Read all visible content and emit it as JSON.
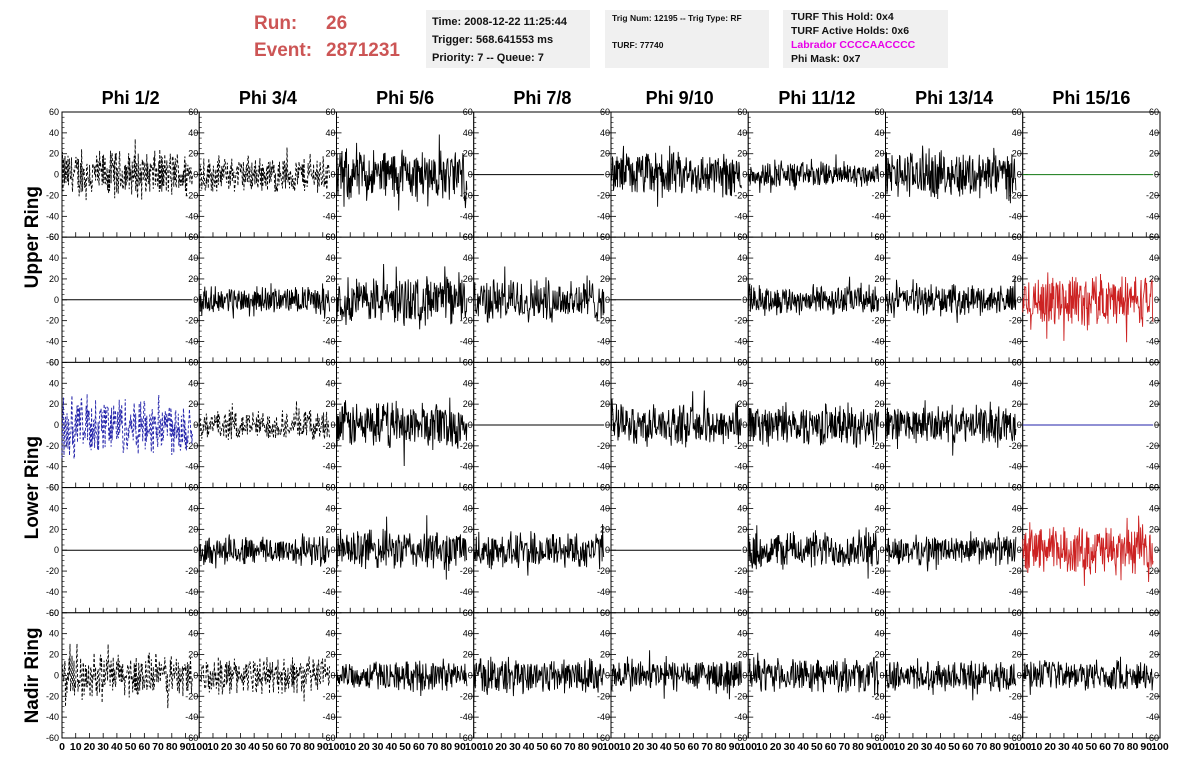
{
  "header": {
    "run_label": "Run:",
    "run_value": "26",
    "event_label": "Event:",
    "event_value": "2871231",
    "time_line": "Time: 2008-12-22 11:25:44",
    "trigger_line": "Trigger: 568.641553 ms",
    "priority_line": "Priority: 7 -- Queue: 7",
    "trig_line": "Trig Num: 12195 -- Trig Type: RF",
    "turf_line": "TURF: 77740",
    "hold_line": "TURF This Hold: 0x4",
    "active_holds_line": "TURF Active Holds: 0x6",
    "labrador_line": "Labrador CCCCAACCCC",
    "phi_mask_line": "Phi Mask: 0x7",
    "labrador_color": "#e800e8"
  },
  "chart_data": {
    "type": "line",
    "columns": [
      "Phi 1/2",
      "Phi 3/4",
      "Phi 5/6",
      "Phi 7/8",
      "Phi 9/10",
      "Phi 11/12",
      "Phi 13/14",
      "Phi 15/16"
    ],
    "rows": [
      "Upper Ring",
      "Lower Ring",
      "Nadir Ring"
    ],
    "sub_rows_per_ring": 2,
    "xlim": [
      0,
      100
    ],
    "ylim": [
      -60,
      60
    ],
    "x_ticks": [
      0,
      10,
      20,
      30,
      40,
      50,
      60,
      70,
      80,
      90,
      100
    ],
    "y_ticks": [
      -60,
      -40,
      -20,
      0,
      20,
      40,
      60
    ],
    "panels": [
      [
        {
          "style": "dashed",
          "color": "#000000",
          "amp": 26
        },
        {
          "style": "dashed",
          "color": "#000000",
          "amp": 20
        },
        {
          "style": "solid",
          "color": "#000000",
          "amp": 28
        },
        {
          "style": "flat",
          "color": "#000000",
          "amp": 0
        },
        {
          "style": "solid",
          "color": "#000000",
          "amp": 24
        },
        {
          "style": "solid",
          "color": "#000000",
          "amp": 14
        },
        {
          "style": "solid",
          "color": "#000000",
          "amp": 26
        },
        {
          "style": "flat",
          "color": "#117711",
          "amp": 0
        }
      ],
      [
        {
          "style": "flat",
          "color": "#000000",
          "amp": 0
        },
        {
          "style": "solid",
          "color": "#000000",
          "amp": 14
        },
        {
          "style": "solid",
          "color": "#000000",
          "amp": 26
        },
        {
          "style": "solid",
          "color": "#000000",
          "amp": 24
        },
        {
          "style": "flat",
          "color": "#000000",
          "amp": 0
        },
        {
          "style": "solid",
          "color": "#000000",
          "amp": 16
        },
        {
          "style": "solid",
          "color": "#000000",
          "amp": 16
        },
        {
          "style": "solid",
          "color": "#cc2222",
          "amp": 28
        }
      ],
      [
        {
          "style": "dashed",
          "color": "#2222aa",
          "amp": 32
        },
        {
          "style": "dashed",
          "color": "#000000",
          "amp": 16
        },
        {
          "style": "solid",
          "color": "#000000",
          "amp": 26
        },
        {
          "style": "flat",
          "color": "#000000",
          "amp": 0
        },
        {
          "style": "solid",
          "color": "#000000",
          "amp": 22
        },
        {
          "style": "solid",
          "color": "#000000",
          "amp": 22
        },
        {
          "style": "solid",
          "color": "#000000",
          "amp": 20
        },
        {
          "style": "flat",
          "color": "#2222aa",
          "amp": 0
        }
      ],
      [
        {
          "style": "flat",
          "color": "#000000",
          "amp": 0
        },
        {
          "style": "solid",
          "color": "#000000",
          "amp": 16
        },
        {
          "style": "solid",
          "color": "#000000",
          "amp": 22
        },
        {
          "style": "solid",
          "color": "#000000",
          "amp": 20
        },
        {
          "style": "flat",
          "color": "#000000",
          "amp": 0
        },
        {
          "style": "solid",
          "color": "#000000",
          "amp": 20
        },
        {
          "style": "solid",
          "color": "#000000",
          "amp": 16
        },
        {
          "style": "solid",
          "color": "#cc2222",
          "amp": 26
        }
      ],
      [
        {
          "style": "dashed",
          "color": "#000000",
          "amp": 24
        },
        {
          "style": "dashed",
          "color": "#000000",
          "amp": 20
        },
        {
          "style": "solid",
          "color": "#000000",
          "amp": 16
        },
        {
          "style": "solid",
          "color": "#000000",
          "amp": 20
        },
        {
          "style": "solid",
          "color": "#000000",
          "amp": 18
        },
        {
          "style": "solid",
          "color": "#000000",
          "amp": 18
        },
        {
          "style": "solid",
          "color": "#000000",
          "amp": 16
        },
        {
          "style": "solid",
          "color": "#000000",
          "amp": 16
        }
      ]
    ]
  }
}
